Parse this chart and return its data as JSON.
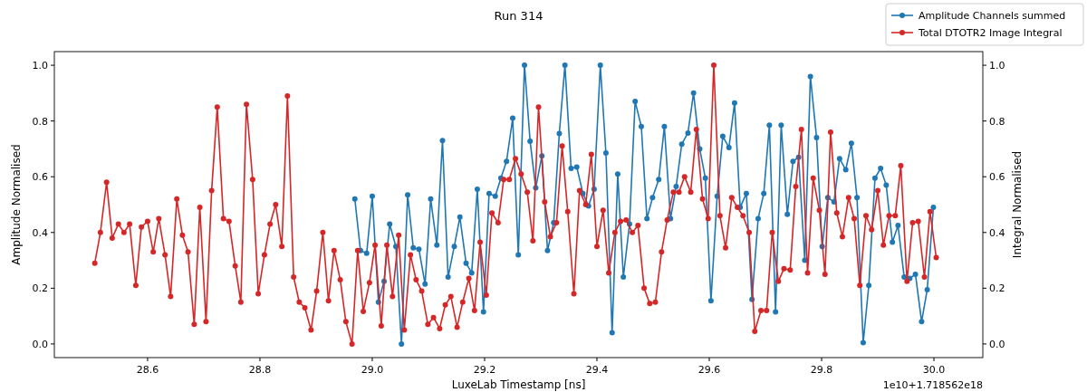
{
  "chart_data": {
    "type": "line",
    "title": "Run 314",
    "xlabel": "LuxeLab Timestamp [ns]",
    "ylabel": "Amplitude Normalised",
    "y2label": "Integral Normalised",
    "annotations": [
      "1e10+1.718562e18"
    ],
    "xlim": [
      28.434,
      30.087
    ],
    "xticks": [
      {
        "value": 28.6,
        "label": "28.6"
      },
      {
        "value": 28.8,
        "label": "28.8"
      },
      {
        "value": 29.0,
        "label": "29.0"
      },
      {
        "value": 29.2,
        "label": "29.2"
      },
      {
        "value": 29.4,
        "label": "29.4"
      },
      {
        "value": 29.6,
        "label": "29.6"
      },
      {
        "value": 29.8,
        "label": "29.8"
      },
      {
        "value": 30.0,
        "label": "30.0"
      }
    ],
    "ylim": [
      -0.049,
      1.049
    ],
    "yticks": [
      {
        "value": 0,
        "label": "0.0"
      },
      {
        "value": 0.2,
        "label": "0.2"
      },
      {
        "value": 0.4,
        "label": "0.4"
      },
      {
        "value": 0.6,
        "label": "0.6"
      },
      {
        "value": 0.8,
        "label": "0.8"
      },
      {
        "value": 1,
        "label": "1.0"
      }
    ],
    "y2lim": [
      -0.049,
      1.049
    ],
    "y2ticks": [
      {
        "value": 0,
        "label": "0.0"
      },
      {
        "value": 0.2,
        "label": "0.2"
      },
      {
        "value": 0.4,
        "label": "0.4"
      },
      {
        "value": 0.6,
        "label": "0.6"
      },
      {
        "value": 0.8,
        "label": "0.8"
      },
      {
        "value": 1,
        "label": "1.0"
      }
    ],
    "legend": "top right",
    "marker": "circle",
    "line_style": "solid",
    "series": [
      {
        "name": "Amplitude Channels summed",
        "color": "#1f77b4",
        "axis": "y",
        "x": [
          28.969,
          28.979,
          28.99,
          29.0,
          29.011,
          29.021,
          29.031,
          29.042,
          29.052,
          29.063,
          29.073,
          29.083,
          29.094,
          29.104,
          29.115,
          29.125,
          29.135,
          29.146,
          29.156,
          29.167,
          29.177,
          29.187,
          29.198,
          29.208,
          29.219,
          29.229,
          29.239,
          29.25,
          29.26,
          29.271,
          29.281,
          29.291,
          29.302,
          29.312,
          29.323,
          29.333,
          29.343,
          29.354,
          29.364,
          29.375,
          29.385,
          29.395,
          29.406,
          29.416,
          29.427,
          29.437,
          29.447,
          29.458,
          29.468,
          29.479,
          29.489,
          29.499,
          29.51,
          29.52,
          29.531,
          29.541,
          29.551,
          29.562,
          29.572,
          29.583,
          29.593,
          29.603,
          29.614,
          29.624,
          29.635,
          29.645,
          29.655,
          29.666,
          29.676,
          29.687,
          29.697,
          29.707,
          29.718,
          29.728,
          29.739,
          29.749,
          29.759,
          29.77,
          29.78,
          29.791,
          29.801,
          29.811,
          29.822,
          29.832,
          29.843,
          29.853,
          29.863,
          29.874,
          29.884,
          29.895,
          29.905,
          29.915,
          29.926,
          29.936,
          29.947,
          29.957,
          29.967,
          29.978,
          29.988,
          29.999
        ],
        "values": [
          0.52,
          0.335,
          0.325,
          0.53,
          0.15,
          0.225,
          0.43,
          0.35,
          0.0,
          0.535,
          0.345,
          0.34,
          0.215,
          0.52,
          0.355,
          0.73,
          0.24,
          0.35,
          0.455,
          0.29,
          0.255,
          0.555,
          0.115,
          0.54,
          0.53,
          0.595,
          0.655,
          0.81,
          0.32,
          1.0,
          0.727,
          0.56,
          0.675,
          0.335,
          0.435,
          0.755,
          1.0,
          0.63,
          0.635,
          0.54,
          0.495,
          0.555,
          1.0,
          0.685,
          0.04,
          0.61,
          0.24,
          0.43,
          0.87,
          0.78,
          0.45,
          0.525,
          0.59,
          0.78,
          0.45,
          0.565,
          0.717,
          0.757,
          0.9,
          0.7,
          0.595,
          0.155,
          0.53,
          0.745,
          0.705,
          0.865,
          0.49,
          0.54,
          0.16,
          0.45,
          0.54,
          0.785,
          0.115,
          0.785,
          0.465,
          0.655,
          0.67,
          0.3,
          0.96,
          0.74,
          0.35,
          0.525,
          0.51,
          0.665,
          0.625,
          0.72,
          0.525,
          0.005,
          0.21,
          0.595,
          0.63,
          0.57,
          0.365,
          0.425,
          0.24,
          0.235,
          0.25,
          0.08,
          0.195,
          0.49
        ]
      },
      {
        "name": "Total DTOTR2 Image Integral",
        "color": "#d62728",
        "axis": "y2",
        "x": [
          28.506,
          28.516,
          28.527,
          28.537,
          28.548,
          28.558,
          28.568,
          28.579,
          28.589,
          28.6,
          28.61,
          28.62,
          28.631,
          28.641,
          28.652,
          28.662,
          28.672,
          28.683,
          28.693,
          28.704,
          28.714,
          28.724,
          28.735,
          28.745,
          28.756,
          28.766,
          28.776,
          28.787,
          28.797,
          28.808,
          28.818,
          28.828,
          28.839,
          28.849,
          28.86,
          28.87,
          28.88,
          28.891,
          28.901,
          28.912,
          28.922,
          28.932,
          28.943,
          28.953,
          28.964,
          28.974,
          28.984,
          28.995,
          29.005,
          29.016,
          29.026,
          29.036,
          29.047,
          29.057,
          29.068,
          29.078,
          29.088,
          29.099,
          29.109,
          29.12,
          29.13,
          29.14,
          29.151,
          29.161,
          29.172,
          29.182,
          29.192,
          29.203,
          29.213,
          29.224,
          29.234,
          29.244,
          29.255,
          29.265,
          29.276,
          29.286,
          29.296,
          29.307,
          29.317,
          29.328,
          29.338,
          29.348,
          29.359,
          29.369,
          29.38,
          29.39,
          29.4,
          29.411,
          29.421,
          29.432,
          29.442,
          29.452,
          29.463,
          29.473,
          29.484,
          29.494,
          29.504,
          29.515,
          29.525,
          29.536,
          29.546,
          29.556,
          29.567,
          29.577,
          29.588,
          29.598,
          29.608,
          29.619,
          29.629,
          29.64,
          29.65,
          29.66,
          29.671,
          29.681,
          29.692,
          29.702,
          29.712,
          29.723,
          29.733,
          29.744,
          29.754,
          29.764,
          29.775,
          29.785,
          29.796,
          29.806,
          29.816,
          29.827,
          29.837,
          29.848,
          29.858,
          29.868,
          29.879,
          29.889,
          29.9,
          29.91,
          29.92,
          29.931,
          29.941,
          29.952,
          29.962,
          29.972,
          29.983,
          29.993,
          30.004
        ],
        "values": [
          0.29,
          0.4,
          0.58,
          0.38,
          0.43,
          0.4,
          0.43,
          0.21,
          0.42,
          0.44,
          0.33,
          0.45,
          0.32,
          0.17,
          0.52,
          0.39,
          0.33,
          0.07,
          0.49,
          0.08,
          0.55,
          0.85,
          0.45,
          0.44,
          0.28,
          0.15,
          0.86,
          0.59,
          0.18,
          0.32,
          0.43,
          0.5,
          0.35,
          0.89,
          0.24,
          0.15,
          0.13,
          0.05,
          0.19,
          0.4,
          0.155,
          0.335,
          0.23,
          0.08,
          0.0,
          0.335,
          0.117,
          0.22,
          0.355,
          0.065,
          0.355,
          0.17,
          0.39,
          0.05,
          0.32,
          0.23,
          0.19,
          0.07,
          0.095,
          0.055,
          0.14,
          0.17,
          0.06,
          0.15,
          0.235,
          0.12,
          0.365,
          0.175,
          0.47,
          0.435,
          0.59,
          0.59,
          0.665,
          0.61,
          0.545,
          0.37,
          0.85,
          0.51,
          0.385,
          0.435,
          0.71,
          0.475,
          0.18,
          0.55,
          0.5,
          0.68,
          0.35,
          0.48,
          0.255,
          0.4,
          0.44,
          0.445,
          0.4,
          0.425,
          0.2,
          0.145,
          0.15,
          0.33,
          0.445,
          0.545,
          0.545,
          0.6,
          0.545,
          0.77,
          0.52,
          0.45,
          1.0,
          0.46,
          0.345,
          0.525,
          0.49,
          0.46,
          0.4,
          0.045,
          0.12,
          0.12,
          0.4,
          0.225,
          0.27,
          0.265,
          0.565,
          0.77,
          0.255,
          0.595,
          0.48,
          0.25,
          0.76,
          0.47,
          0.385,
          0.525,
          0.45,
          0.21,
          0.46,
          0.41,
          0.55,
          0.355,
          0.46,
          0.46,
          0.64,
          0.225,
          0.435,
          0.44,
          0.24,
          0.475,
          0.31
        ]
      }
    ]
  }
}
